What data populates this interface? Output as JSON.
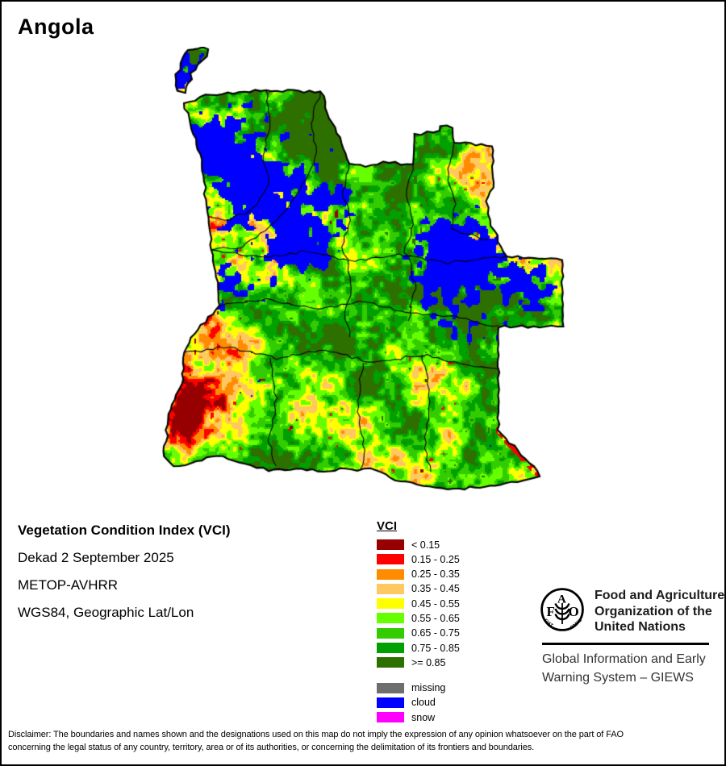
{
  "title": "Angola",
  "info_block": {
    "line1": "Vegetation Condition Index (VCI)",
    "line2": "Dekad 2 September 2025",
    "line3": "METOP-AVHRR",
    "line4": "WGS84, Geographic Lat/Lon"
  },
  "legend": {
    "title": "VCI",
    "classes": [
      {
        "label": "< 0.15",
        "color": "#970000"
      },
      {
        "label": "0.15 - 0.25",
        "color": "#FF0000"
      },
      {
        "label": "0.25 - 0.35",
        "color": "#FF8C00"
      },
      {
        "label": "0.35 - 0.45",
        "color": "#FFC861"
      },
      {
        "label": "0.45 - 0.55",
        "color": "#FFFF00"
      },
      {
        "label": "0.55 - 0.65",
        "color": "#66FF00"
      },
      {
        "label": "0.65 - 0.75",
        "color": "#33CC00"
      },
      {
        "label": "0.75 - 0.85",
        "color": "#00A000"
      },
      {
        "label": ">= 0.85",
        "color": "#2E7000"
      }
    ],
    "extra_classes": [
      {
        "label": "missing",
        "color": "#6E6E6E"
      },
      {
        "label": "cloud",
        "color": "#0000FF"
      },
      {
        "label": "snow",
        "color": "#FF00FF"
      }
    ]
  },
  "footer": {
    "fao_name_lines": [
      "Food and Agriculture",
      "Organization of the",
      "United Nations"
    ],
    "fao_motto": [
      "FIAT",
      "PANIS"
    ],
    "fao_letters": [
      "F",
      "A",
      "O"
    ],
    "giews_lines": [
      "Global Information and Early",
      "Warning System – GIEWS"
    ]
  },
  "disclaimer": {
    "line1": "Disclaimer: The boundaries and names shown and the designations used on this map do not imply the expression of any opinion whatsoever on the part of FAO",
    "line2": "concerning the legal status of any country, territory, area or of its authorities, or concerning the delimitation of its frontiers and boundaries."
  }
}
